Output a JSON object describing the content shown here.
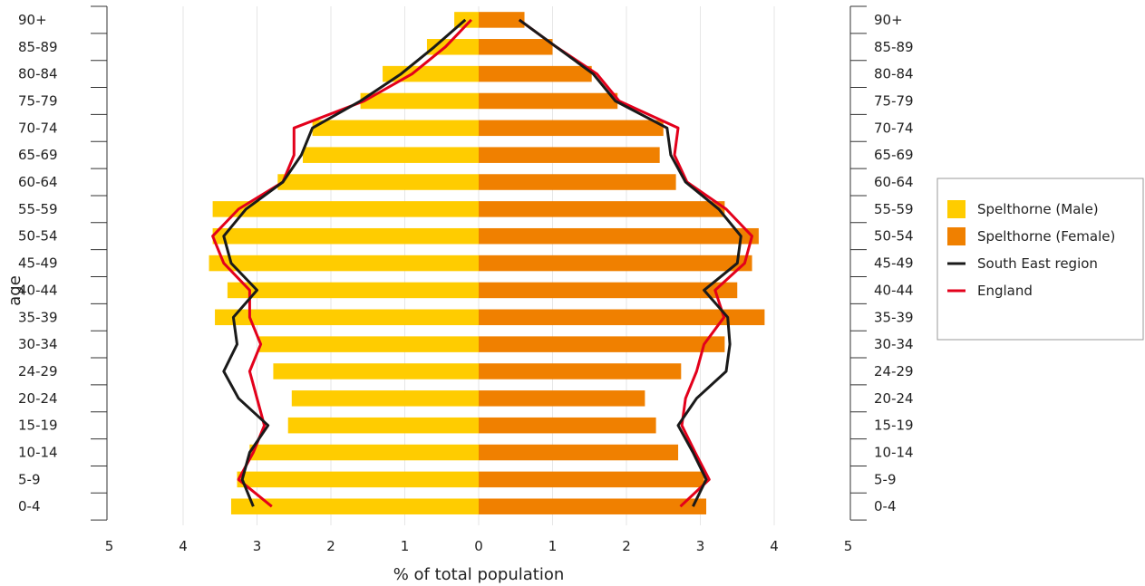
{
  "chart_data": {
    "type": "bar",
    "subtype": "population-pyramid",
    "xlabel": "% of total population",
    "ylabel": "age",
    "xlim": [
      -5,
      5
    ],
    "x_ticks": [
      "5",
      "4",
      "3",
      "2",
      "1",
      "0",
      "1",
      "2",
      "3",
      "4",
      "5"
    ],
    "categories": [
      "0-4",
      "5-9",
      "10-14",
      "15-19",
      "20-24",
      "24-29",
      "30-34",
      "35-39",
      "40-44",
      "45-49",
      "50-54",
      "55-59",
      "60-64",
      "65-69",
      "70-74",
      "75-79",
      "80-84",
      "85-89",
      "90+"
    ],
    "grid": "vertical",
    "legend_position": "right",
    "series": [
      {
        "name": "Spelthorne (Male)",
        "kind": "bar",
        "side": "left",
        "color": "#FFCC00",
        "values": [
          3.35,
          3.27,
          3.1,
          2.58,
          2.53,
          2.78,
          2.97,
          3.57,
          3.4,
          3.65,
          3.6,
          3.6,
          2.72,
          2.38,
          2.25,
          1.6,
          1.3,
          0.7,
          0.33
        ]
      },
      {
        "name": "Spelthorne (Female)",
        "kind": "bar",
        "side": "right",
        "color": "#F08000",
        "values": [
          3.08,
          3.05,
          2.7,
          2.4,
          2.25,
          2.74,
          3.33,
          3.87,
          3.5,
          3.7,
          3.79,
          3.33,
          2.67,
          2.45,
          2.5,
          1.88,
          1.53,
          1.0,
          0.62
        ]
      },
      {
        "name": "South East region",
        "kind": "line",
        "color": "#1a1a1a",
        "male": [
          3.05,
          3.2,
          3.1,
          2.85,
          3.25,
          3.45,
          3.27,
          3.32,
          3.0,
          3.35,
          3.45,
          3.15,
          2.65,
          2.4,
          2.25,
          1.6,
          1.05,
          0.6,
          0.18
        ],
        "female": [
          2.9,
          3.08,
          2.9,
          2.7,
          2.95,
          3.35,
          3.4,
          3.37,
          3.05,
          3.5,
          3.55,
          3.25,
          2.8,
          2.6,
          2.55,
          1.85,
          1.55,
          1.05,
          0.55
        ]
      },
      {
        "name": "England",
        "kind": "line",
        "color": "#E3001B",
        "male": [
          2.8,
          3.25,
          3.05,
          2.9,
          3.0,
          3.1,
          2.95,
          3.1,
          3.1,
          3.45,
          3.6,
          3.25,
          2.65,
          2.5,
          2.5,
          1.55,
          0.9,
          0.45,
          0.1
        ],
        "female": [
          2.73,
          3.12,
          2.93,
          2.75,
          2.8,
          2.95,
          3.05,
          3.32,
          3.2,
          3.6,
          3.7,
          3.35,
          2.82,
          2.65,
          2.7,
          1.9,
          1.6,
          1.05,
          0.55
        ]
      }
    ]
  }
}
